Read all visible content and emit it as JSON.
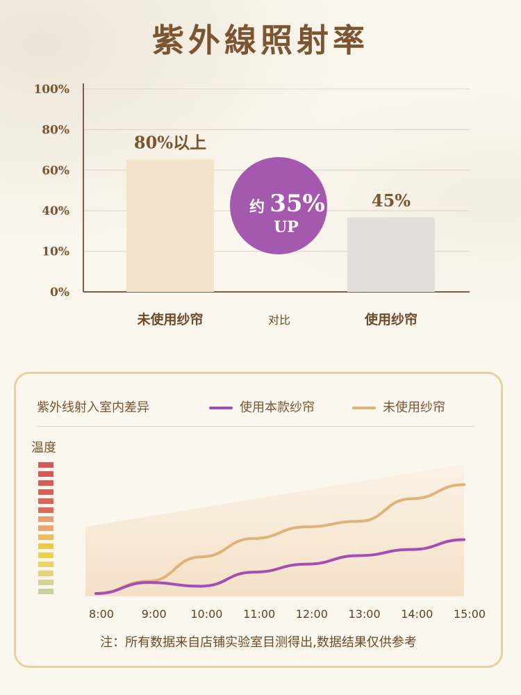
{
  "bar_chart": {
    "title": "紫外線照射率",
    "middle_label": "对比",
    "badge": {
      "line1": "约",
      "value": "35%",
      "line2": "UP",
      "color": "#a459ae"
    },
    "colors": {
      "bar_without": "#f3e3cd",
      "bar_with": "#e3dedb",
      "axis": "#7a5a4a",
      "grid": "#dcd3c8"
    }
  },
  "line_panel": {
    "title": "紫外线射入室内差异",
    "temperature_label": "温度",
    "footnote": "注：所有数据来自店铺实验室目测得出,数据结果仅供参考",
    "colors": {
      "with": "#a44db5",
      "without": "#e0b278",
      "border": "#e6cfa2"
    },
    "temp_scale_colors": [
      "#d85757",
      "#d85757",
      "#d85d57",
      "#d86057",
      "#d86557",
      "#d96a57",
      "#e59f74",
      "#eaa774",
      "#ecbf5e",
      "#eccb44",
      "#ecd14a",
      "#e8d46a",
      "#e3d47a",
      "#d9d39a",
      "#c8d09e"
    ]
  },
  "chart_data": [
    {
      "type": "bar",
      "title": "紫外線照射率",
      "categories": [
        "未使用纱帘",
        "使用纱帘"
      ],
      "values": [
        80,
        45
      ],
      "data_labels": [
        "80%以上",
        "45%"
      ],
      "yticks": [
        "100%",
        "80%",
        "60%",
        "40%",
        "10%",
        "0%"
      ],
      "ylim": [
        0,
        100
      ],
      "grid": true
    },
    {
      "type": "line",
      "x": [
        "8:00",
        "9:00",
        "10:00",
        "11:00",
        "12:00",
        "13:00",
        "14:00",
        "15:00"
      ],
      "series": [
        {
          "name": "使用本款纱帘",
          "values": [
            0,
            18,
            12,
            35,
            48,
            62,
            72,
            88
          ]
        },
        {
          "name": "未使用纱帘",
          "values": [
            0,
            20,
            60,
            90,
            109,
            118,
            155,
            178
          ]
        }
      ],
      "ylabel": "温度",
      "grid": false
    }
  ]
}
